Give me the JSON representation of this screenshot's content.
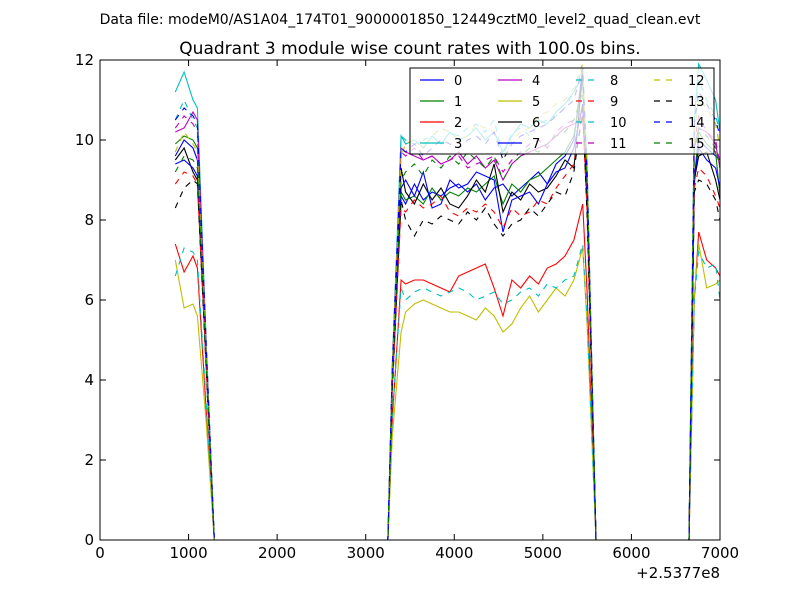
{
  "figure": {
    "suptitle": "Data file: modeM0/AS1A04_174T01_9000001850_12449cztM0_level2_quad_clean.evt"
  },
  "chart_data": {
    "type": "line",
    "title": "Quadrant 3 module wise count rates with 100.0s bins.",
    "xlabel": "",
    "ylabel": "",
    "x_offset_label": "+2.5377e8",
    "xlim": [
      0,
      7000
    ],
    "ylim": [
      0,
      12
    ],
    "xticks": [
      0,
      1000,
      2000,
      3000,
      4000,
      5000,
      6000,
      7000
    ],
    "yticks": [
      0,
      2,
      4,
      6,
      8,
      10,
      12
    ],
    "grid": false,
    "legend_position": "top-right",
    "legend_columns": 4,
    "x": [
      850,
      950,
      1050,
      1100,
      1200,
      1290,
      1350,
      2000,
      3000,
      3250,
      3300,
      3400,
      3450,
      3550,
      3650,
      3750,
      3850,
      3950,
      4050,
      4150,
      4250,
      4350,
      4450,
      4550,
      4650,
      4750,
      4850,
      4950,
      5050,
      5150,
      5250,
      5350,
      5450,
      5500,
      5600,
      5700,
      6000,
      6650,
      6710,
      6760,
      6850,
      6950,
      7000
    ],
    "series": [
      {
        "name": "0",
        "color": "#0000ff",
        "dash": "solid",
        "values": [
          9.6,
          10.0,
          9.8,
          9.5,
          4.5,
          0,
          0,
          0,
          0,
          0,
          4.0,
          8.6,
          8.4,
          8.9,
          8.5,
          8.7,
          8.6,
          8.8,
          8.9,
          8.7,
          8.9,
          8.5,
          8.8,
          8.9,
          8.6,
          8.8,
          9.0,
          9.2,
          8.9,
          9.4,
          9.6,
          10.0,
          11.8,
          9.0,
          0,
          0,
          0,
          0,
          8.9,
          10.0,
          9.8,
          9.6,
          9.5
        ]
      },
      {
        "name": "1",
        "color": "#008000",
        "dash": "solid",
        "values": [
          9.9,
          10.1,
          10.0,
          9.8,
          4.6,
          0,
          0,
          0,
          0,
          0,
          4.1,
          8.7,
          8.5,
          8.6,
          8.4,
          8.8,
          8.5,
          8.7,
          8.6,
          8.8,
          8.7,
          8.9,
          9.1,
          8.4,
          8.9,
          8.7,
          9.0,
          9.1,
          9.3,
          9.5,
          9.7,
          10.1,
          11.5,
          8.8,
          0,
          0,
          0,
          0,
          9.0,
          10.2,
          9.9,
          9.7,
          8.6
        ]
      },
      {
        "name": "2",
        "color": "#ff0000",
        "dash": "solid",
        "values": [
          7.4,
          6.7,
          7.1,
          6.8,
          3.2,
          0,
          0,
          0,
          0,
          0,
          3.0,
          6.5,
          6.4,
          6.5,
          6.5,
          6.4,
          6.3,
          6.2,
          6.6,
          6.7,
          6.8,
          6.9,
          6.3,
          5.6,
          6.5,
          6.3,
          6.6,
          6.4,
          6.8,
          6.9,
          7.1,
          7.5,
          8.4,
          6.2,
          0,
          0,
          0,
          0,
          6.0,
          7.7,
          7.0,
          6.8,
          6.6
        ]
      },
      {
        "name": "3",
        "color": "#00bfbf",
        "dash": "solid",
        "values": [
          11.2,
          11.7,
          11.0,
          10.8,
          4.9,
          0,
          0,
          0,
          0,
          0,
          4.4,
          10.1,
          9.9,
          10.0,
          9.8,
          10.1,
          9.9,
          10.2,
          10.0,
          10.1,
          10.3,
          10.0,
          10.2,
          9.7,
          10.1,
          10.4,
          10.3,
          10.5,
          10.4,
          10.7,
          10.9,
          11.2,
          11.6,
          9.4,
          0,
          0,
          0,
          0,
          10.5,
          11.9,
          11.5,
          11.0,
          10.2
        ]
      },
      {
        "name": "4",
        "color": "#bf00bf",
        "dash": "solid",
        "values": [
          10.2,
          10.3,
          10.7,
          10.5,
          4.7,
          0,
          0,
          0,
          0,
          0,
          4.3,
          9.8,
          9.7,
          9.6,
          9.5,
          9.6,
          9.4,
          9.5,
          9.7,
          9.4,
          9.6,
          9.3,
          9.5,
          9.0,
          9.4,
          9.6,
          9.7,
          9.8,
          9.9,
          10.1,
          10.3,
          10.4,
          10.6,
          8.9,
          0,
          0,
          0,
          0,
          9.8,
          10.3,
          10.2,
          9.9,
          9.3
        ]
      },
      {
        "name": "5",
        "color": "#bfbf00",
        "dash": "solid",
        "values": [
          7.0,
          5.8,
          5.9,
          5.6,
          2.9,
          0,
          0,
          0,
          0,
          0,
          2.6,
          5.2,
          5.7,
          5.9,
          6.0,
          5.9,
          5.8,
          5.7,
          5.7,
          5.6,
          5.5,
          5.8,
          5.6,
          5.2,
          5.4,
          5.8,
          6.1,
          5.7,
          6.0,
          6.3,
          6.1,
          6.5,
          7.3,
          5.4,
          0,
          0,
          0,
          0,
          6.1,
          7.4,
          6.3,
          6.4,
          6.5
        ]
      },
      {
        "name": "6",
        "color": "#000000",
        "dash": "solid",
        "values": [
          9.5,
          9.8,
          9.2,
          9.0,
          4.4,
          0,
          0,
          0,
          0,
          0,
          3.9,
          9.3,
          8.7,
          8.4,
          8.9,
          8.5,
          8.8,
          8.4,
          8.3,
          8.6,
          9.0,
          8.7,
          9.4,
          8.2,
          8.7,
          8.5,
          8.9,
          8.7,
          8.8,
          9.1,
          9.5,
          9.3,
          11.7,
          8.7,
          0,
          0,
          0,
          0,
          9.0,
          9.6,
          9.7,
          9.0,
          8.5
        ]
      },
      {
        "name": "7",
        "color": "#0000ff",
        "dash": "solid",
        "values": [
          9.4,
          9.5,
          9.3,
          9.1,
          4.3,
          0,
          0,
          0,
          0,
          0,
          4.0,
          8.8,
          9.0,
          8.6,
          9.2,
          8.3,
          8.4,
          9.0,
          8.8,
          8.9,
          9.2,
          9.1,
          9.0,
          7.7,
          8.5,
          8.6,
          8.7,
          8.4,
          8.9,
          9.2,
          9.3,
          9.8,
          10.9,
          8.5,
          0,
          0,
          0,
          0,
          9.1,
          9.8,
          9.5,
          9.3,
          8.8
        ]
      },
      {
        "name": "8",
        "color": "#00bfbf",
        "dash": "dashed",
        "values": [
          6.6,
          7.3,
          7.2,
          7.0,
          3.4,
          0,
          0,
          0,
          0,
          0,
          3.1,
          6.3,
          6.0,
          6.2,
          6.3,
          6.2,
          6.1,
          6.2,
          6.3,
          6.2,
          6.0,
          6.1,
          6.2,
          5.9,
          6.0,
          6.2,
          6.3,
          6.1,
          6.4,
          6.3,
          6.5,
          6.6,
          7.4,
          5.5,
          0,
          0,
          0,
          0,
          6.0,
          7.2,
          6.8,
          6.9,
          6.0
        ]
      },
      {
        "name": "9",
        "color": "#ff0000",
        "dash": "dashed",
        "values": [
          8.9,
          9.2,
          9.1,
          8.9,
          4.3,
          0,
          0,
          0,
          0,
          0,
          3.8,
          8.3,
          8.2,
          8.5,
          8.3,
          8.4,
          8.6,
          8.2,
          8.1,
          8.3,
          8.2,
          8.4,
          8.2,
          7.8,
          8.3,
          8.1,
          8.2,
          8.5,
          8.4,
          8.8,
          9.1,
          9.4,
          10.6,
          8.2,
          0,
          0,
          0,
          0,
          8.8,
          9.3,
          9.1,
          8.6,
          8.3
        ]
      },
      {
        "name": "10",
        "color": "#00bfbf",
        "dash": "dashed",
        "values": [
          10.5,
          11.0,
          10.5,
          10.3,
          4.8,
          0,
          0,
          0,
          0,
          0,
          4.3,
          10.1,
          10.0,
          9.9,
          10.0,
          10.1,
          10.3,
          10.2,
          10.1,
          10.3,
          10.4,
          10.2,
          10.5,
          9.6,
          10.2,
          10.3,
          10.1,
          10.4,
          10.5,
          10.6,
          10.8,
          11.2,
          11.8,
          9.3,
          0,
          0,
          0,
          0,
          10.6,
          11.5,
          11.0,
          10.6,
          10.2
        ]
      },
      {
        "name": "11",
        "color": "#bf00bf",
        "dash": "dashed",
        "values": [
          10.3,
          10.6,
          10.4,
          10.2,
          4.7,
          0,
          0,
          0,
          0,
          0,
          4.2,
          9.7,
          9.6,
          9.8,
          9.5,
          9.6,
          9.4,
          9.5,
          9.6,
          9.3,
          9.4,
          9.5,
          9.6,
          9.2,
          9.5,
          9.7,
          9.9,
          10.0,
          9.8,
          10.2,
          10.4,
          10.5,
          10.7,
          9.0,
          0,
          0,
          0,
          0,
          9.9,
          10.6,
          10.2,
          10.0,
          9.4
        ]
      },
      {
        "name": "12",
        "color": "#bfbf00",
        "dash": "dashed",
        "values": [
          9.7,
          10.2,
          9.9,
          9.7,
          4.6,
          0,
          0,
          0,
          0,
          0,
          4.2,
          9.6,
          9.9,
          10.0,
          9.8,
          10.1,
          10.3,
          10.2,
          10.0,
          10.1,
          10.4,
          10.3,
          10.2,
          9.5,
          10.0,
          10.2,
          10.3,
          10.6,
          10.7,
          10.9,
          11.0,
          11.3,
          11.9,
          9.3,
          0,
          0,
          0,
          0,
          10.2,
          11.0,
          10.8,
          10.4,
          9.8
        ]
      },
      {
        "name": "13",
        "color": "#000000",
        "dash": "dashed",
        "values": [
          8.3,
          8.8,
          9.0,
          8.9,
          4.2,
          0,
          0,
          0,
          0,
          0,
          3.7,
          8.5,
          8.0,
          7.6,
          8.0,
          7.9,
          8.1,
          8.0,
          7.9,
          8.2,
          8.0,
          8.3,
          7.9,
          7.6,
          7.9,
          8.0,
          8.3,
          8.1,
          8.4,
          8.7,
          8.6,
          9.2,
          10.8,
          8.1,
          0,
          0,
          0,
          0,
          8.7,
          9.0,
          8.9,
          8.5,
          8.0
        ]
      },
      {
        "name": "14",
        "color": "#0000ff",
        "dash": "dashed",
        "values": [
          10.5,
          10.8,
          10.6,
          10.4,
          4.8,
          0,
          0,
          0,
          0,
          0,
          4.3,
          9.8,
          9.7,
          9.9,
          9.6,
          9.8,
          10.0,
          9.9,
          9.8,
          10.0,
          10.1,
          9.9,
          10.2,
          9.5,
          9.9,
          10.1,
          10.2,
          10.3,
          10.4,
          10.6,
          10.8,
          11.0,
          11.8,
          9.2,
          0,
          0,
          0,
          0,
          10.4,
          11.2,
          10.9,
          10.5,
          10.1
        ]
      },
      {
        "name": "15",
        "color": "#008000",
        "dash": "dashed",
        "values": [
          9.2,
          9.6,
          9.5,
          9.3,
          4.4,
          0,
          0,
          0,
          0,
          0,
          4.0,
          9.0,
          9.2,
          9.4,
          9.1,
          9.5,
          9.3,
          9.6,
          9.4,
          9.7,
          9.5,
          9.3,
          9.6,
          9.0,
          9.4,
          9.6,
          9.8,
          9.7,
          9.9,
          10.1,
          10.2,
          10.5,
          11.2,
          8.9,
          0,
          0,
          0,
          0,
          9.7,
          10.3,
          10.1,
          9.8,
          9.3
        ]
      }
    ]
  }
}
